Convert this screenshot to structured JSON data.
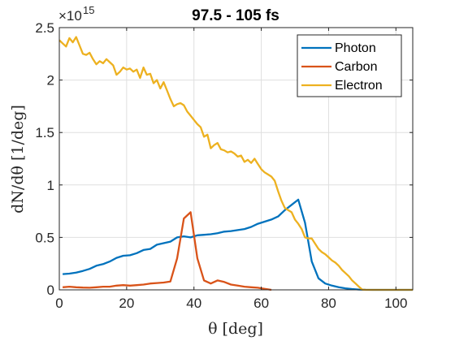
{
  "chart_data": {
    "type": "line",
    "title": "97.5 - 105 fs",
    "xlabel": "θ [deg]",
    "ylabel": "dN/dθ [1/deg]",
    "y_exponent_label": "×10",
    "y_exponent_power": "15",
    "xlim": [
      0,
      105
    ],
    "ylim": [
      0,
      2500000000000000.0
    ],
    "xticks": [
      0,
      20,
      40,
      60,
      80,
      100
    ],
    "xtick_labels": [
      "0",
      "20",
      "40",
      "60",
      "80",
      "100"
    ],
    "yticks": [
      0,
      500000000000000.0,
      1000000000000000.0,
      1500000000000000.0,
      2000000000000000.0,
      2500000000000000.0
    ],
    "ytick_labels": [
      "0",
      "0.5",
      "1",
      "1.5",
      "2",
      "2.5"
    ],
    "grid": true,
    "legend_position": "top-right",
    "series": [
      {
        "name": "Photon",
        "color": "#0072BD",
        "x": [
          1,
          3,
          5,
          7,
          9,
          11,
          13,
          15,
          17,
          19,
          21,
          23,
          25,
          27,
          29,
          31,
          33,
          35,
          37,
          39,
          41,
          43,
          45,
          47,
          49,
          51,
          53,
          55,
          57,
          59,
          61,
          63,
          65,
          67,
          69,
          71,
          73,
          75,
          77,
          79,
          81,
          83,
          85,
          87,
          89,
          91,
          93,
          95,
          97,
          99,
          101,
          103,
          105
        ],
        "y": [
          150000000000000.0,
          155000000000000.0,
          165000000000000.0,
          180000000000000.0,
          200000000000000.0,
          230000000000000.0,
          245000000000000.0,
          270000000000000.0,
          305000000000000.0,
          325000000000000.0,
          330000000000000.0,
          350000000000000.0,
          380000000000000.0,
          390000000000000.0,
          430000000000000.0,
          445000000000000.0,
          460000000000000.0,
          500000000000000.0,
          510000000000000.0,
          500000000000000.0,
          520000000000000.0,
          525000000000000.0,
          530000000000000.0,
          540000000000000.0,
          555000000000000.0,
          560000000000000.0,
          570000000000000.0,
          580000000000000.0,
          600000000000000.0,
          630000000000000.0,
          650000000000000.0,
          670000000000000.0,
          700000000000000.0,
          760000000000000.0,
          810000000000000.0,
          860000000000000.0,
          640000000000000.0,
          270000000000000.0,
          110000000000000.0,
          60000000000000.0,
          40000000000000.0,
          25000000000000.0,
          15000000000000.0,
          8000000000000.0,
          3000000000000.0,
          1000000000000.0,
          0,
          0,
          0,
          0,
          0,
          0,
          0
        ]
      },
      {
        "name": "Carbon",
        "color": "#D95319",
        "x": [
          1,
          3,
          5,
          7,
          9,
          11,
          13,
          15,
          17,
          19,
          21,
          23,
          25,
          27,
          29,
          31,
          33,
          35,
          37,
          39,
          41,
          43,
          45,
          47,
          49,
          51,
          53,
          55,
          57,
          59,
          61,
          63
        ],
        "y": [
          25000000000000.0,
          30000000000000.0,
          25000000000000.0,
          22000000000000.0,
          20000000000000.0,
          25000000000000.0,
          30000000000000.0,
          30000000000000.0,
          40000000000000.0,
          45000000000000.0,
          40000000000000.0,
          45000000000000.0,
          50000000000000.0,
          60000000000000.0,
          65000000000000.0,
          70000000000000.0,
          80000000000000.0,
          300000000000000.0,
          680000000000000.0,
          740000000000000.0,
          300000000000000.0,
          90000000000000.0,
          60000000000000.0,
          90000000000000.0,
          75000000000000.0,
          50000000000000.0,
          40000000000000.0,
          30000000000000.0,
          25000000000000.0,
          20000000000000.0,
          10000000000000.0,
          0
        ]
      },
      {
        "name": "Electron",
        "color": "#EDB120",
        "x": [
          0,
          1,
          2,
          3,
          4,
          5,
          6,
          7,
          8,
          9,
          10,
          11,
          12,
          13,
          14,
          15,
          16,
          17,
          18,
          19,
          20,
          21,
          22,
          23,
          24,
          25,
          26,
          27,
          28,
          29,
          30,
          31,
          32,
          33,
          34,
          35,
          36,
          37,
          38,
          39,
          40,
          41,
          42,
          43,
          44,
          45,
          46,
          47,
          48,
          49,
          50,
          51,
          52,
          53,
          54,
          55,
          56,
          57,
          58,
          59,
          60,
          61,
          62,
          63,
          64,
          65,
          66,
          67,
          68,
          69,
          70,
          71,
          72,
          73,
          74,
          75,
          76,
          77,
          78,
          79,
          80,
          81,
          82,
          83,
          84,
          85,
          86,
          87,
          88,
          89,
          90,
          91,
          92,
          93,
          94,
          95,
          96,
          97,
          98,
          99,
          100,
          101,
          102,
          103,
          104,
          105
        ],
        "y": [
          2380000000000000.0,
          2350000000000000.0,
          2320000000000000.0,
          2400000000000000.0,
          2360000000000000.0,
          2410000000000000.0,
          2330000000000000.0,
          2250000000000000.0,
          2240000000000000.0,
          2260000000000000.0,
          2200000000000000.0,
          2150000000000000.0,
          2180000000000000.0,
          2160000000000000.0,
          2200000000000000.0,
          2170000000000000.0,
          2140000000000000.0,
          2050000000000000.0,
          2080000000000000.0,
          2120000000000000.0,
          2100000000000000.0,
          2110000000000000.0,
          2080000000000000.0,
          2100000000000000.0,
          2020000000000000.0,
          2120000000000000.0,
          2050000000000000.0,
          2060000000000000.0,
          1970000000000000.0,
          2000000000000000.0,
          1920000000000000.0,
          1980000000000000.0,
          1900000000000000.0,
          1820000000000000.0,
          1750000000000000.0,
          1770000000000000.0,
          1780000000000000.0,
          1760000000000000.0,
          1700000000000000.0,
          1660000000000000.0,
          1620000000000000.0,
          1580000000000000.0,
          1550000000000000.0,
          1460000000000000.0,
          1480000000000000.0,
          1350000000000000.0,
          1380000000000000.0,
          1400000000000000.0,
          1340000000000000.0,
          1330000000000000.0,
          1310000000000000.0,
          1320000000000000.0,
          1300000000000000.0,
          1270000000000000.0,
          1280000000000000.0,
          1220000000000000.0,
          1240000000000000.0,
          1210000000000000.0,
          1250000000000000.0,
          1200000000000000.0,
          1150000000000000.0,
          1120000000000000.0,
          1100000000000000.0,
          1080000000000000.0,
          1040000000000000.0,
          940000000000000.0,
          850000000000000.0,
          780000000000000.0,
          760000000000000.0,
          740000000000000.0,
          670000000000000.0,
          630000000000000.0,
          580000000000000.0,
          500000000000000.0,
          490000000000000.0,
          490000000000000.0,
          440000000000000.0,
          390000000000000.0,
          360000000000000.0,
          340000000000000.0,
          310000000000000.0,
          280000000000000.0,
          260000000000000.0,
          230000000000000.0,
          190000000000000.0,
          160000000000000.0,
          130000000000000.0,
          90000000000000.0,
          60000000000000.0,
          30000000000000.0,
          2000000000000.0,
          0,
          0,
          0,
          0,
          0,
          0,
          0,
          0,
          0,
          0,
          0,
          0,
          0,
          0,
          0
        ]
      }
    ]
  }
}
